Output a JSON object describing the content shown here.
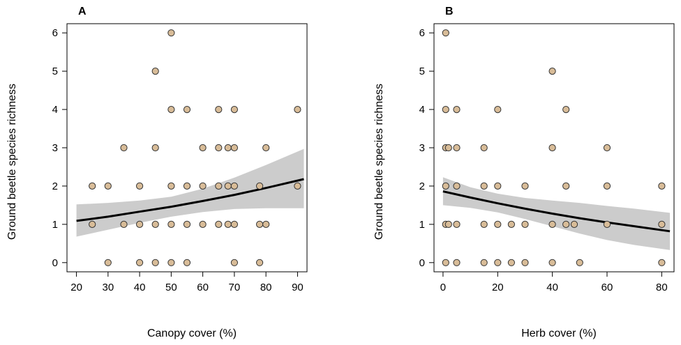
{
  "colors": {
    "point_fill": "#d8bc98",
    "point_stroke": "#333333",
    "ci_band": "#cccccc",
    "fit_line": "#000000",
    "frame": "#000000"
  },
  "chart_data": [
    {
      "type": "scatter",
      "panel": "A",
      "title": "A",
      "xlabel": "Canopy cover (%)",
      "ylabel": "Ground beetle species richness",
      "xlim": [
        17,
        93
      ],
      "ylim": [
        -0.24,
        6.24
      ],
      "xticks": [
        20,
        30,
        40,
        50,
        60,
        70,
        80,
        90
      ],
      "yticks": [
        0,
        1,
        2,
        3,
        4,
        5,
        6
      ],
      "grid": false,
      "points": [
        {
          "x": 25,
          "y": 2
        },
        {
          "x": 25,
          "y": 1
        },
        {
          "x": 30,
          "y": 2
        },
        {
          "x": 30,
          "y": 0
        },
        {
          "x": 35,
          "y": 3
        },
        {
          "x": 35,
          "y": 1
        },
        {
          "x": 40,
          "y": 2
        },
        {
          "x": 40,
          "y": 1
        },
        {
          "x": 40,
          "y": 0
        },
        {
          "x": 45,
          "y": 5
        },
        {
          "x": 45,
          "y": 3
        },
        {
          "x": 45,
          "y": 1
        },
        {
          "x": 45,
          "y": 0
        },
        {
          "x": 50,
          "y": 6
        },
        {
          "x": 50,
          "y": 4
        },
        {
          "x": 50,
          "y": 2
        },
        {
          "x": 50,
          "y": 1
        },
        {
          "x": 50,
          "y": 0
        },
        {
          "x": 55,
          "y": 4
        },
        {
          "x": 55,
          "y": 2
        },
        {
          "x": 55,
          "y": 1
        },
        {
          "x": 55,
          "y": 0
        },
        {
          "x": 60,
          "y": 3
        },
        {
          "x": 60,
          "y": 2
        },
        {
          "x": 60,
          "y": 1
        },
        {
          "x": 65,
          "y": 4
        },
        {
          "x": 65,
          "y": 3
        },
        {
          "x": 65,
          "y": 2
        },
        {
          "x": 65,
          "y": 1
        },
        {
          "x": 68,
          "y": 3
        },
        {
          "x": 68,
          "y": 2
        },
        {
          "x": 68,
          "y": 1
        },
        {
          "x": 70,
          "y": 4
        },
        {
          "x": 70,
          "y": 3
        },
        {
          "x": 70,
          "y": 2
        },
        {
          "x": 70,
          "y": 1
        },
        {
          "x": 70,
          "y": 0
        },
        {
          "x": 78,
          "y": 2
        },
        {
          "x": 78,
          "y": 1
        },
        {
          "x": 78,
          "y": 0
        },
        {
          "x": 80,
          "y": 3
        },
        {
          "x": 80,
          "y": 1
        },
        {
          "x": 90,
          "y": 4
        },
        {
          "x": 90,
          "y": 2
        }
      ],
      "fit": {
        "x": [
          20,
          30,
          40,
          50,
          60,
          70,
          80,
          92
        ],
        "y": [
          1.09,
          1.2,
          1.33,
          1.46,
          1.61,
          1.77,
          1.95,
          2.18
        ],
        "lower": [
          0.68,
          0.86,
          1.04,
          1.2,
          1.32,
          1.4,
          1.42,
          1.42
        ],
        "upper": [
          1.52,
          1.56,
          1.62,
          1.72,
          1.93,
          2.22,
          2.55,
          2.97
        ]
      }
    },
    {
      "type": "scatter",
      "panel": "B",
      "title": "B",
      "xlabel": "Herb cover (%)",
      "ylabel": "Ground beetle species richness",
      "xlim": [
        -3.3,
        84.5
      ],
      "ylim": [
        -0.24,
        6.24
      ],
      "xticks": [
        0,
        20,
        40,
        60,
        80
      ],
      "yticks": [
        0,
        1,
        2,
        3,
        4,
        5,
        6
      ],
      "grid": false,
      "points": [
        {
          "x": 1,
          "y": 6
        },
        {
          "x": 1,
          "y": 4
        },
        {
          "x": 1,
          "y": 3
        },
        {
          "x": 1,
          "y": 2
        },
        {
          "x": 1,
          "y": 1
        },
        {
          "x": 1,
          "y": 0
        },
        {
          "x": 2,
          "y": 3
        },
        {
          "x": 2,
          "y": 1
        },
        {
          "x": 5,
          "y": 4
        },
        {
          "x": 5,
          "y": 3
        },
        {
          "x": 5,
          "y": 2
        },
        {
          "x": 5,
          "y": 1
        },
        {
          "x": 5,
          "y": 0
        },
        {
          "x": 15,
          "y": 3
        },
        {
          "x": 15,
          "y": 2
        },
        {
          "x": 15,
          "y": 1
        },
        {
          "x": 15,
          "y": 0
        },
        {
          "x": 20,
          "y": 4
        },
        {
          "x": 20,
          "y": 2
        },
        {
          "x": 20,
          "y": 1
        },
        {
          "x": 20,
          "y": 0
        },
        {
          "x": 25,
          "y": 1
        },
        {
          "x": 25,
          "y": 0
        },
        {
          "x": 30,
          "y": 2
        },
        {
          "x": 30,
          "y": 1
        },
        {
          "x": 30,
          "y": 0
        },
        {
          "x": 40,
          "y": 5
        },
        {
          "x": 40,
          "y": 3
        },
        {
          "x": 40,
          "y": 1
        },
        {
          "x": 40,
          "y": 0
        },
        {
          "x": 45,
          "y": 4
        },
        {
          "x": 45,
          "y": 2
        },
        {
          "x": 45,
          "y": 1
        },
        {
          "x": 48,
          "y": 1
        },
        {
          "x": 50,
          "y": 0
        },
        {
          "x": 60,
          "y": 3
        },
        {
          "x": 60,
          "y": 2
        },
        {
          "x": 60,
          "y": 1
        },
        {
          "x": 80,
          "y": 2
        },
        {
          "x": 80,
          "y": 1
        },
        {
          "x": 80,
          "y": 0
        }
      ],
      "fit": {
        "x": [
          0,
          10,
          20,
          30,
          40,
          50,
          60,
          70,
          83
        ],
        "y": [
          1.86,
          1.7,
          1.55,
          1.41,
          1.28,
          1.16,
          1.05,
          0.95,
          0.82
        ],
        "lower": [
          1.5,
          1.43,
          1.31,
          1.14,
          0.95,
          0.76,
          0.59,
          0.46,
          0.33
        ],
        "upper": [
          2.23,
          1.97,
          1.8,
          1.69,
          1.62,
          1.56,
          1.48,
          1.41,
          1.3
        ]
      }
    }
  ]
}
